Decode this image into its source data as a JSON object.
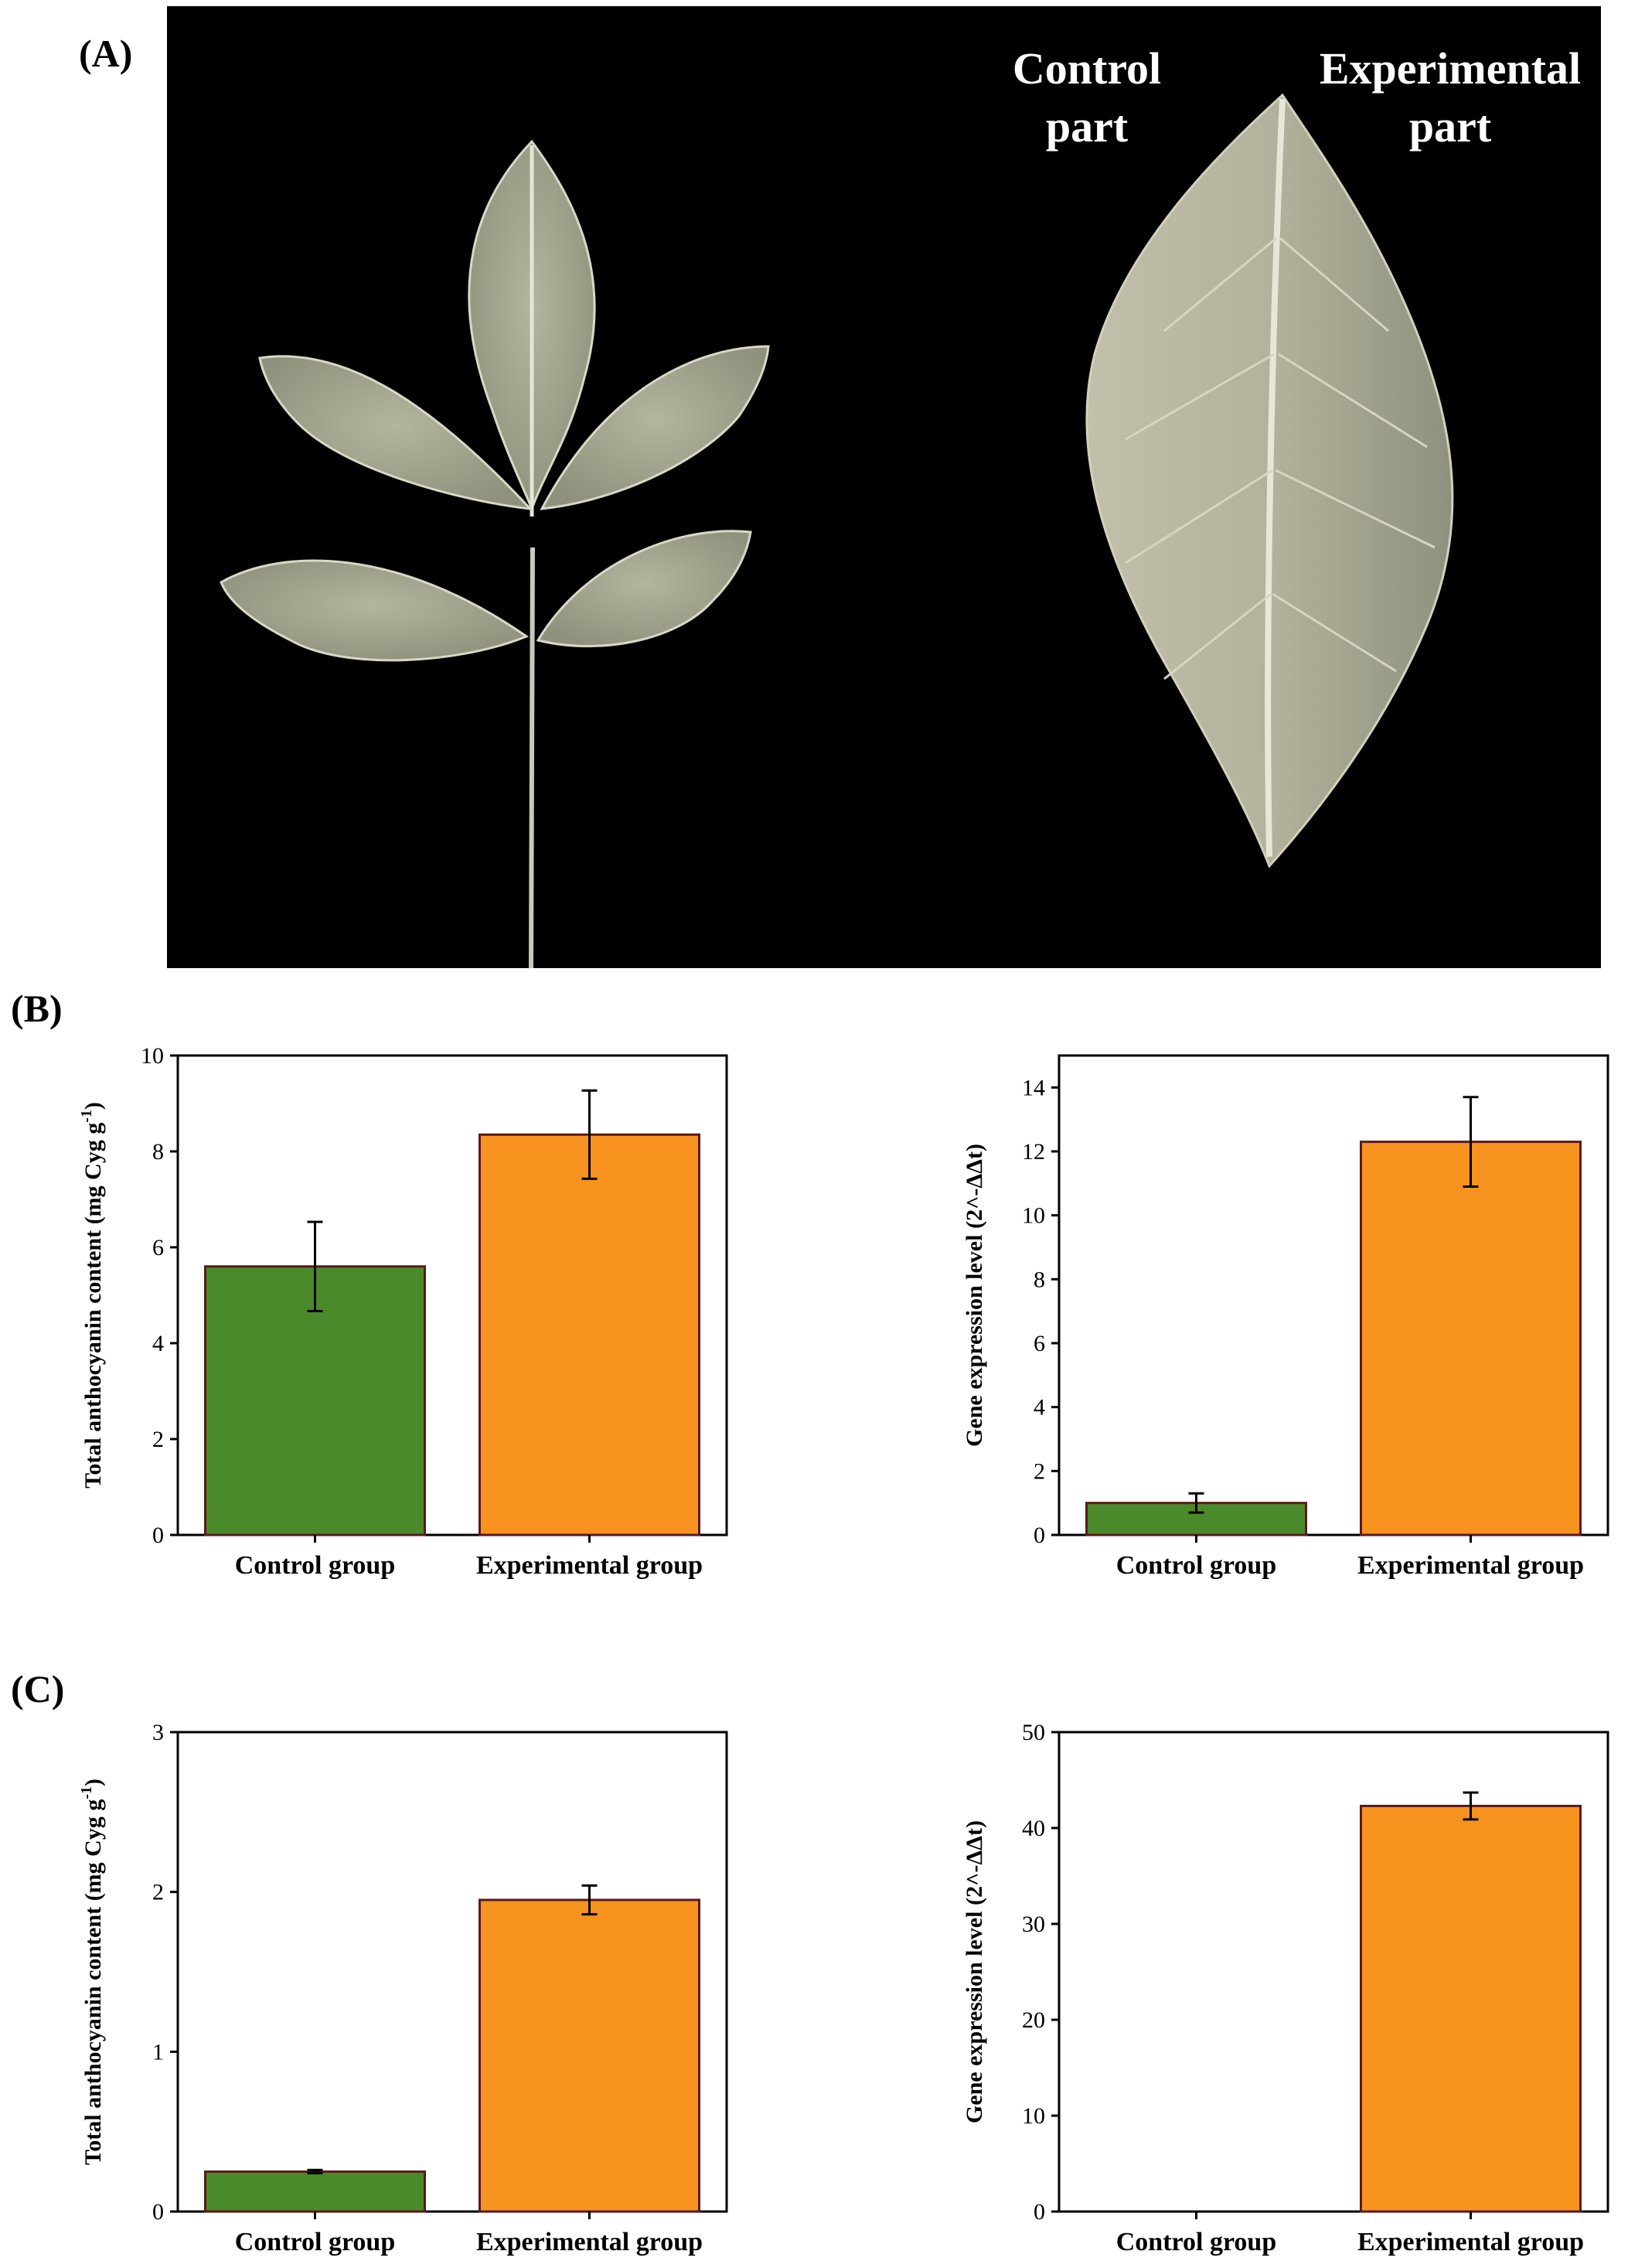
{
  "panels": {
    "a": "(A)",
    "b": "(B)",
    "c": "(C)"
  },
  "photo": {
    "label_control_line1": "Control",
    "label_control_line2": "part",
    "label_experimental_line1": "Experimental",
    "label_experimental_line2": "part"
  },
  "colors": {
    "control": "#4a8a2a",
    "experimental": "#f7931e",
    "outline": "#5a1a1a",
    "background_photo": "#000000"
  },
  "chart_data": [
    {
      "id": "B-left",
      "type": "bar",
      "categories": [
        "Control group",
        "Experimental group"
      ],
      "values": [
        5.6,
        8.35
      ],
      "errors": [
        0.93,
        0.92
      ],
      "ylabel_main": "Total anthocyanin content (mg Cyg g",
      "ylabel_sup": "-1",
      "ylabel_end": ")",
      "ylim": [
        0,
        10
      ],
      "yticks": [
        0,
        2,
        4,
        6,
        8,
        10
      ]
    },
    {
      "id": "B-right",
      "type": "bar",
      "categories": [
        "Control group",
        "Experimental group"
      ],
      "values": [
        1.0,
        12.3
      ],
      "errors": [
        0.3,
        1.4
      ],
      "ylabel_main": "Gene expression level (2^-ΔΔt)",
      "ylabel_sup": "",
      "ylabel_end": "",
      "ylim": [
        0,
        15
      ],
      "yticks": [
        0,
        2,
        4,
        6,
        8,
        10,
        12,
        14
      ]
    },
    {
      "id": "C-left",
      "type": "bar",
      "categories": [
        "Control group",
        "Experimental group"
      ],
      "values": [
        0.25,
        1.95
      ],
      "errors": [
        0.01,
        0.09
      ],
      "ylabel_main": "Total anthocyanin content (mg Cyg g",
      "ylabel_sup": "-1",
      "ylabel_end": ")",
      "ylim": [
        0,
        3
      ],
      "yticks": [
        0,
        1,
        2,
        3
      ]
    },
    {
      "id": "C-right",
      "type": "bar",
      "categories": [
        "Control group",
        "Experimental group"
      ],
      "values": [
        0.0,
        42.3
      ],
      "errors": [
        0.0,
        1.4
      ],
      "ylabel_main": "Gene expression level (2^-ΔΔt)",
      "ylabel_sup": "",
      "ylabel_end": "",
      "ylim": [
        0,
        50
      ],
      "yticks": [
        0,
        10,
        20,
        30,
        40,
        50
      ]
    }
  ]
}
